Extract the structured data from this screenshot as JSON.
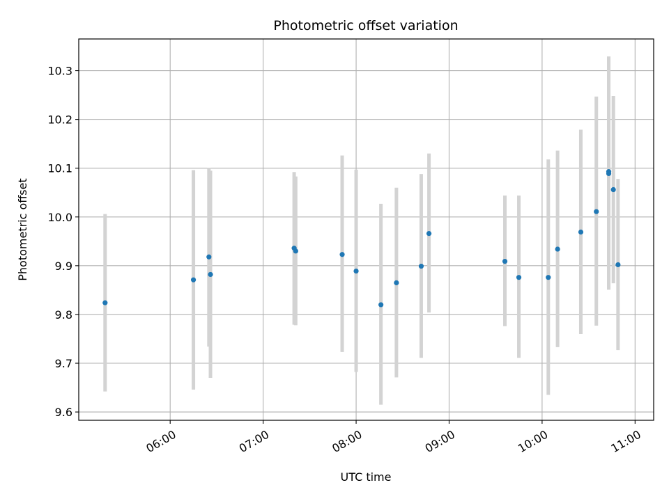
{
  "chart_data": {
    "type": "scatter",
    "title": "Photometric offset variation",
    "xlabel": "UTC time",
    "ylabel": "Photometric offset",
    "x_ticks": [
      "06:00",
      "07:00",
      "08:00",
      "09:00",
      "10:00",
      "11:00"
    ],
    "y_ticks": [
      "9.6",
      "9.7",
      "9.8",
      "9.9",
      "10.0",
      "10.1",
      "10.2",
      "10.3"
    ],
    "xlim": [
      "05:01",
      "11:12"
    ],
    "ylim": [
      9.583,
      10.365
    ],
    "grid": true,
    "errorbar_color": "#d3d3d3",
    "point_color": "#1f77b4",
    "series": [
      {
        "points": [
          {
            "t": "05:18",
            "y": 9.824,
            "lo": 9.642,
            "hi": 10.006
          },
          {
            "t": "06:15",
            "y": 9.871,
            "lo": 9.646,
            "hi": 10.096
          },
          {
            "t": "06:25",
            "y": 9.918,
            "lo": 9.734,
            "hi": 10.101
          },
          {
            "t": "06:26",
            "y": 9.882,
            "lo": 9.67,
            "hi": 10.095
          },
          {
            "t": "07:20",
            "y": 9.936,
            "lo": 9.779,
            "hi": 10.092
          },
          {
            "t": "07:21",
            "y": 9.93,
            "lo": 9.778,
            "hi": 10.083
          },
          {
            "t": "07:51",
            "y": 9.923,
            "lo": 9.723,
            "hi": 10.126
          },
          {
            "t": "08:00",
            "y": 9.889,
            "lo": 9.682,
            "hi": 10.097
          },
          {
            "t": "08:16",
            "y": 9.82,
            "lo": 9.615,
            "hi": 10.027
          },
          {
            "t": "08:26",
            "y": 9.865,
            "lo": 9.671,
            "hi": 10.06
          },
          {
            "t": "08:42",
            "y": 9.899,
            "lo": 9.711,
            "hi": 10.088
          },
          {
            "t": "08:47",
            "y": 9.966,
            "lo": 9.804,
            "hi": 10.13
          },
          {
            "t": "09:36",
            "y": 9.909,
            "lo": 9.776,
            "hi": 10.044
          },
          {
            "t": "09:45",
            "y": 9.876,
            "lo": 9.711,
            "hi": 10.044
          },
          {
            "t": "10:04",
            "y": 9.876,
            "lo": 9.635,
            "hi": 10.118
          },
          {
            "t": "10:10",
            "y": 9.934,
            "lo": 9.733,
            "hi": 10.136
          },
          {
            "t": "10:25",
            "y": 9.969,
            "lo": 9.76,
            "hi": 10.179
          },
          {
            "t": "10:35",
            "y": 10.011,
            "lo": 9.777,
            "hi": 10.247
          },
          {
            "t": "10:43",
            "y": 10.093,
            "lo": 9.851,
            "hi": 10.329
          },
          {
            "t": "10:43",
            "y": 10.089,
            "lo": 9.851,
            "hi": 10.329
          },
          {
            "t": "10:46",
            "y": 10.056,
            "lo": 9.864,
            "hi": 10.248
          },
          {
            "t": "10:49",
            "y": 9.902,
            "lo": 9.727,
            "hi": 10.078
          }
        ]
      }
    ]
  }
}
